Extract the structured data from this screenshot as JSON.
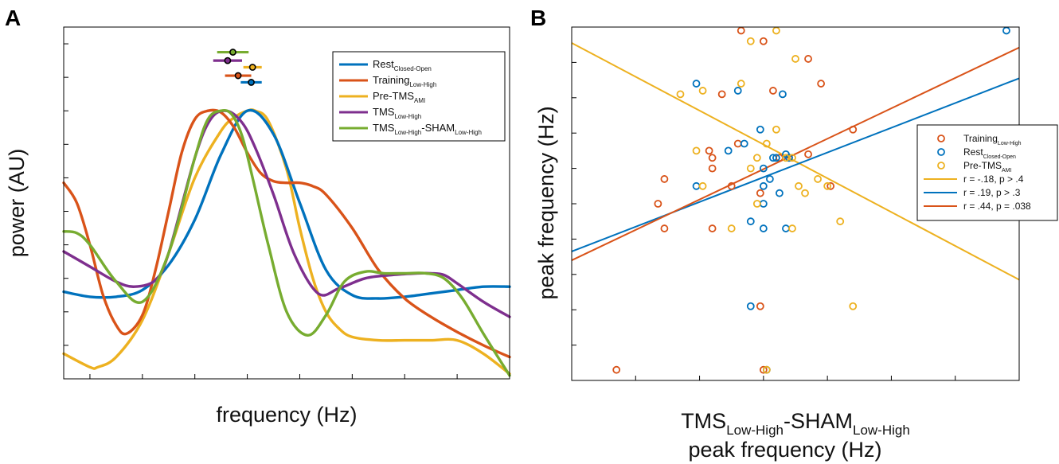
{
  "colors": {
    "blue": "#0072bd",
    "orange": "#d95319",
    "yellow": "#edb120",
    "purple": "#7e2f8e",
    "green": "#77ac30"
  },
  "chart_data": [
    {
      "panel": "A",
      "type": "line",
      "xlabel": "frequency (Hz)",
      "ylabel": "power (AU)",
      "xlim": [
        3,
        20
      ],
      "ylim": [
        -0.6,
        1.5
      ],
      "xticks": [
        "4",
        "6",
        "8",
        "10",
        "12",
        "14",
        "16",
        "18",
        "20"
      ],
      "yticks": [
        "-0.6",
        "-0.4",
        "-0.2",
        "0",
        "0.2",
        "0.4",
        "0.6",
        "0.8",
        "1",
        "1.2",
        "1.4"
      ],
      "legend_position": "top-right",
      "series": [
        {
          "name": "Rest",
          "sub": "Closed-Open",
          "suffix": "",
          "sub2": "",
          "color": "blue",
          "x": [
            3,
            4,
            5,
            6,
            7,
            8,
            9,
            10,
            11,
            12,
            13,
            14,
            15,
            16,
            17,
            18,
            19,
            20
          ],
          "y": [
            -0.08,
            -0.11,
            -0.11,
            -0.07,
            0.08,
            0.35,
            0.74,
            1.0,
            0.86,
            0.45,
            0.05,
            -0.1,
            -0.12,
            -0.11,
            -0.09,
            -0.07,
            -0.05,
            -0.05
          ]
        },
        {
          "name": "Training",
          "sub": "Low-High",
          "suffix": "",
          "sub2": "",
          "color": "orange",
          "x": [
            3,
            3.5,
            4,
            4.5,
            5,
            5.4,
            6,
            6.5,
            7,
            7.5,
            8,
            8.5,
            9,
            9.5,
            10,
            10.5,
            11,
            11.5,
            12,
            12.5,
            13,
            14,
            15,
            16,
            17,
            18,
            19,
            20
          ],
          "y": [
            0.57,
            0.45,
            0.2,
            -0.1,
            -0.28,
            -0.33,
            -0.22,
            0.05,
            0.4,
            0.75,
            0.95,
            1.0,
            0.99,
            0.9,
            0.75,
            0.63,
            0.58,
            0.57,
            0.57,
            0.55,
            0.5,
            0.3,
            0.05,
            -0.12,
            -0.23,
            -0.32,
            -0.4,
            -0.47
          ]
        },
        {
          "name": "Pre-TMS",
          "sub": "AMI",
          "suffix": "",
          "sub2": "",
          "color": "yellow",
          "x": [
            3,
            4,
            4.3,
            5,
            6,
            7,
            8,
            9,
            9.5,
            10,
            10.3,
            10.8,
            11.5,
            12,
            12.5,
            13,
            13.5,
            14,
            15,
            16,
            17,
            18,
            19,
            20
          ],
          "y": [
            -0.45,
            -0.53,
            -0.53,
            -0.47,
            -0.25,
            0.15,
            0.6,
            0.88,
            0.96,
            1.0,
            1.0,
            0.94,
            0.65,
            0.3,
            0.0,
            -0.2,
            -0.3,
            -0.35,
            -0.37,
            -0.37,
            -0.37,
            -0.37,
            -0.45,
            -0.57
          ]
        },
        {
          "name": "TMS",
          "sub": "Low-High",
          "suffix": "",
          "sub2": "",
          "color": "purple",
          "x": [
            3,
            4,
            5,
            5.7,
            6.5,
            7,
            8,
            8.6,
            9.2,
            9.8,
            10.3,
            11,
            11.8,
            12.7,
            13.5,
            14.5,
            15.5,
            16.5,
            17,
            17.5,
            18,
            19,
            20
          ],
          "y": [
            0.16,
            0.07,
            -0.02,
            -0.05,
            -0.01,
            0.15,
            0.72,
            0.95,
            1.0,
            0.93,
            0.78,
            0.5,
            0.14,
            -0.09,
            -0.06,
            0.0,
            0.02,
            0.03,
            0.03,
            0.02,
            -0.03,
            -0.14,
            -0.23
          ]
        },
        {
          "name": "TMS",
          "sub": "Low-High",
          "suffix": "-SHAM",
          "sub2": "Low-High",
          "color": "green",
          "x": [
            3,
            3.5,
            4,
            5,
            6,
            7,
            8,
            8.5,
            9,
            9.4,
            9.8,
            10.2,
            10.8,
            11.5,
            12.3,
            13,
            13.7,
            14.5,
            15.2,
            16,
            16.8,
            17.5,
            18.2,
            19,
            20
          ],
          "y": [
            0.28,
            0.27,
            0.2,
            -0.02,
            -0.14,
            0.15,
            0.72,
            0.95,
            1.0,
            0.98,
            0.85,
            0.6,
            0.2,
            -0.2,
            -0.34,
            -0.22,
            -0.02,
            0.04,
            0.03,
            0.03,
            0.03,
            0.0,
            -0.12,
            -0.33,
            -0.58
          ]
        }
      ],
      "peak_markers": [
        {
          "color": "green",
          "x": 9.45,
          "y": 1.35,
          "err": 0.6
        },
        {
          "color": "purple",
          "x": 9.25,
          "y": 1.3,
          "err": 0.55
        },
        {
          "color": "yellow",
          "x": 10.2,
          "y": 1.26,
          "err": 0.35
        },
        {
          "color": "orange",
          "x": 9.65,
          "y": 1.21,
          "err": 0.5
        },
        {
          "color": "blue",
          "x": 10.15,
          "y": 1.17,
          "err": 0.4
        }
      ]
    },
    {
      "panel": "B",
      "type": "scatter",
      "xlabel_line1_main": "TMS",
      "xlabel_line1_sub": "Low-High",
      "xlabel_line1_mid": "-SHAM",
      "xlabel_line1_sub2": "Low-High",
      "xlabel_line2": "peak frequency (Hz)",
      "ylabel": "peak frequency (Hz)",
      "xlim": [
        4,
        18
      ],
      "ylim": [
        3,
        13
      ],
      "xticks": [
        "4",
        "6",
        "8",
        "10",
        "12",
        "14",
        "16",
        "18"
      ],
      "yticks": [
        "3",
        "4",
        "5",
        "6",
        "7",
        "8",
        "9",
        "10",
        "11",
        "12",
        "13"
      ],
      "legend_position": "right",
      "series": [
        {
          "name": "Training",
          "sub": "Low-High",
          "color": "orange",
          "points": [
            [
              5.4,
              3.3
            ],
            [
              6.7,
              8.0
            ],
            [
              6.9,
              8.7
            ],
            [
              6.9,
              7.3
            ],
            [
              8.3,
              9.5
            ],
            [
              8.4,
              9.3
            ],
            [
              8.4,
              9.0
            ],
            [
              8.4,
              7.3
            ],
            [
              8.7,
              11.1
            ],
            [
              9.0,
              8.5
            ],
            [
              9.3,
              12.9
            ],
            [
              9.9,
              8.3
            ],
            [
              9.9,
              5.1
            ],
            [
              10.0,
              3.3
            ],
            [
              10.0,
              12.6
            ],
            [
              10.3,
              11.2
            ],
            [
              10.5,
              9.3
            ],
            [
              10.8,
              9.3
            ],
            [
              11.4,
              12.1
            ],
            [
              11.4,
              9.4
            ],
            [
              11.8,
              11.4
            ],
            [
              12.1,
              8.5
            ],
            [
              12.8,
              10.1
            ],
            [
              9.2,
              9.7
            ]
          ]
        },
        {
          "name": "Rest",
          "sub": "Closed-Open",
          "color": "blue",
          "points": [
            [
              7.9,
              11.4
            ],
            [
              7.9,
              8.5
            ],
            [
              8.9,
              9.5
            ],
            [
              9.2,
              11.2
            ],
            [
              9.4,
              9.7
            ],
            [
              9.6,
              7.5
            ],
            [
              9.6,
              5.1
            ],
            [
              9.9,
              10.1
            ],
            [
              10.0,
              9.0
            ],
            [
              10.0,
              8.5
            ],
            [
              10.0,
              8.0
            ],
            [
              10.0,
              7.3
            ],
            [
              10.1,
              3.3
            ],
            [
              10.2,
              8.7
            ],
            [
              10.4,
              9.3
            ],
            [
              10.5,
              8.3
            ],
            [
              10.6,
              11.1
            ],
            [
              10.7,
              9.4
            ],
            [
              10.7,
              7.3
            ],
            [
              17.6,
              12.9
            ],
            [
              10.3,
              9.3
            ],
            [
              10.8,
              9.3
            ]
          ]
        },
        {
          "name": "Pre-TMS",
          "sub": "AMI",
          "color": "yellow",
          "points": [
            [
              7.4,
              11.1
            ],
            [
              7.9,
              9.5
            ],
            [
              8.1,
              8.5
            ],
            [
              8.1,
              11.2
            ],
            [
              9.0,
              7.3
            ],
            [
              9.3,
              11.4
            ],
            [
              9.6,
              12.6
            ],
            [
              9.6,
              9.0
            ],
            [
              9.8,
              9.3
            ],
            [
              9.8,
              8.0
            ],
            [
              10.1,
              9.7
            ],
            [
              10.1,
              3.3
            ],
            [
              10.4,
              10.1
            ],
            [
              10.4,
              12.9
            ],
            [
              10.7,
              9.3
            ],
            [
              10.9,
              9.3
            ],
            [
              10.9,
              7.3
            ],
            [
              11.0,
              12.1
            ],
            [
              11.1,
              8.5
            ],
            [
              11.3,
              8.3
            ],
            [
              11.7,
              8.7
            ],
            [
              12.0,
              8.5
            ],
            [
              12.4,
              7.5
            ],
            [
              12.8,
              5.1
            ]
          ]
        }
      ],
      "fit_lines": [
        {
          "label": "r = -.18, p > .4",
          "color": "yellow",
          "x": [
            4,
            18
          ],
          "y": [
            12.55,
            5.85
          ]
        },
        {
          "label": "r =  .19, p > .3",
          "color": "blue",
          "x": [
            4,
            18
          ],
          "y": [
            6.65,
            11.55
          ]
        },
        {
          "label": "r = .44, p = .038",
          "color": "orange",
          "x": [
            4,
            18
          ],
          "y": [
            6.4,
            12.42
          ]
        }
      ]
    }
  ]
}
